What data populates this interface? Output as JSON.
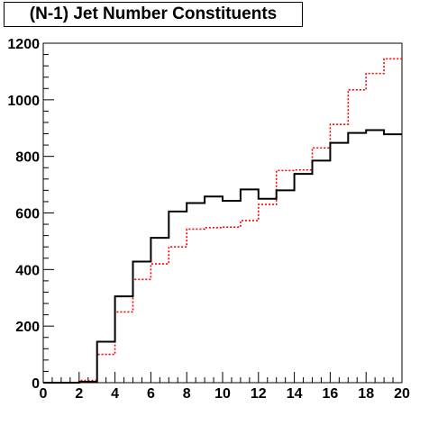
{
  "chart_data": {
    "type": "line",
    "title": "(N-1) Jet Number Constituents",
    "xlabel": "",
    "ylabel": "",
    "xlim": [
      0,
      20
    ],
    "ylim": [
      0,
      1200
    ],
    "x_ticks": [
      0,
      2,
      4,
      6,
      8,
      10,
      12,
      14,
      16,
      18,
      20
    ],
    "y_ticks": [
      0,
      200,
      400,
      600,
      800,
      1000,
      1200
    ],
    "bin_edges": [
      0,
      1,
      2,
      3,
      4,
      5,
      6,
      7,
      8,
      9,
      10,
      11,
      12,
      13,
      14,
      15,
      16,
      17,
      18,
      19,
      20
    ],
    "grid": false,
    "legend": "none",
    "series": [
      {
        "style": "solid",
        "color": "#000000",
        "values": [
          0,
          0,
          3,
          145,
          305,
          428,
          512,
          605,
          635,
          658,
          643,
          683,
          650,
          680,
          738,
          785,
          848,
          883,
          893,
          878
        ]
      },
      {
        "style": "dotted",
        "color": "#ff0000",
        "values": [
          0,
          0,
          8,
          100,
          250,
          365,
          420,
          480,
          543,
          548,
          550,
          573,
          630,
          750,
          752,
          830,
          913,
          1035,
          1093,
          1145
        ]
      }
    ]
  }
}
